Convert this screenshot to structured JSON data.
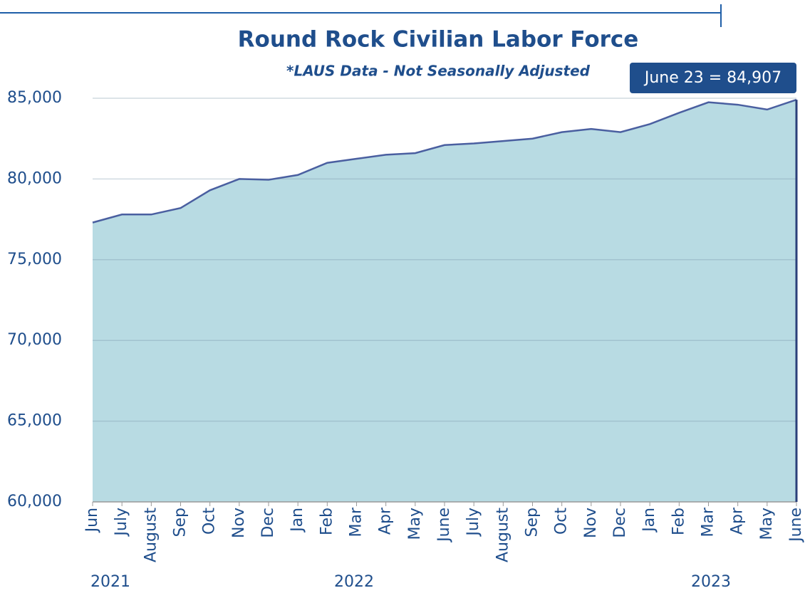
{
  "chart_data": {
    "type": "area",
    "title": "Round Rock Civilian Labor Force",
    "subtitle": "*LAUS Data - Not Seasonally Adjusted",
    "annotation": "June 23 = 84,907",
    "categories": [
      "Jun",
      "July",
      "August",
      "Sep",
      "Oct",
      "Nov",
      "Dec",
      "Jan",
      "Feb",
      "Mar",
      "Apr",
      "May",
      "June",
      "July",
      "August",
      "Sep",
      "Oct",
      "Nov",
      "Dec",
      "Jan",
      "Feb",
      "Mar",
      "Apr",
      "May",
      "June"
    ],
    "year_labels": [
      "2021",
      "2022",
      "2023"
    ],
    "values": [
      77300,
      77800,
      77800,
      78200,
      79300,
      80000,
      79950,
      80250,
      81000,
      81250,
      81500,
      81600,
      82100,
      82200,
      82350,
      82500,
      82900,
      83100,
      82900,
      83400,
      84100,
      84750,
      84600,
      84300,
      84907
    ],
    "color": "#b8dbe3",
    "line_color": "#4a5fa0",
    "ylim": [
      60000,
      85000
    ],
    "yticks": [
      {
        "value": 60000,
        "label": "60,000"
      },
      {
        "value": 65000,
        "label": "65,000"
      },
      {
        "value": 70000,
        "label": "70,000"
      },
      {
        "value": 75000,
        "label": "75,000"
      },
      {
        "value": 80000,
        "label": "80,000"
      },
      {
        "value": 85000,
        "label": "85,000"
      }
    ],
    "grid": true
  }
}
